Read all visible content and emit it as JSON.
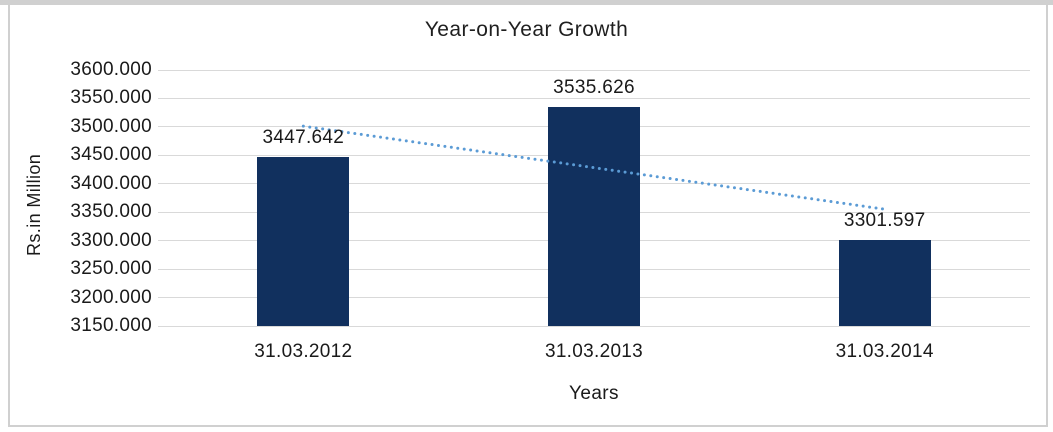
{
  "chart_data": {
    "type": "bar",
    "title": "Year-on-Year Growth",
    "xlabel": "Years",
    "ylabel": "Rs.in Million",
    "categories": [
      "31.03.2012",
      "31.03.2013",
      "31.03.2014"
    ],
    "values": [
      3447.642,
      3535.626,
      3301.597
    ],
    "data_labels": [
      "3447.642",
      "3535.626",
      "3301.597"
    ],
    "ylim": [
      3150,
      3600
    ],
    "ytick_step": 50,
    "ytick_labels": [
      "3600.000",
      "3550.000",
      "3500.000",
      "3450.000",
      "3400.000",
      "3350.000",
      "3300.000",
      "3250.000",
      "3200.000",
      "3150.000"
    ],
    "grid": true,
    "legend": false,
    "trendline": {
      "type": "linear",
      "style": "dotted"
    },
    "colors": {
      "bar": "#11305e",
      "trendline": "#5b9bd5",
      "gridline": "#d9d9d9",
      "text": "#1a1a1a",
      "frame": "#d0d0d0",
      "background": "#ffffff"
    }
  }
}
